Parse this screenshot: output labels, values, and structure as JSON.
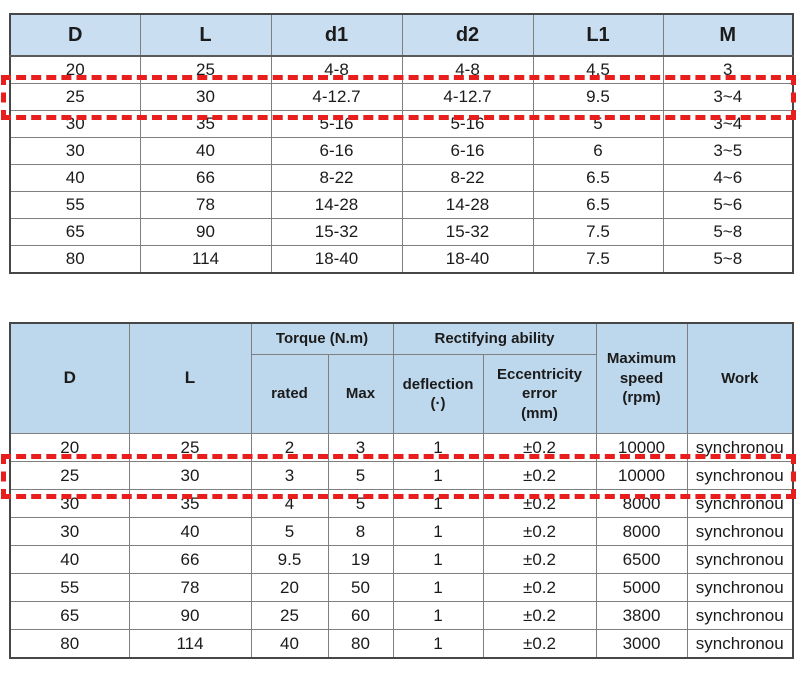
{
  "colors": {
    "table1_header_bg": "#cadef2",
    "table2_header_bg": "#bdd7ec",
    "outer_border": "#474747",
    "inner_border": "#7f7f7f",
    "highlight_red": "#e81e1c",
    "text": "#1b1b1b"
  },
  "table1": {
    "columns": [
      "D",
      "L",
      "d1",
      "d2",
      "L1",
      "M"
    ],
    "rows": [
      [
        "20",
        "25",
        "4-8",
        "4-8",
        "4.5",
        "3"
      ],
      [
        "25",
        "30",
        "4-12.7",
        "4-12.7",
        "9.5",
        "3~4"
      ],
      [
        "30",
        "35",
        "5-16",
        "5-16",
        "5",
        "3~4"
      ],
      [
        "30",
        "40",
        "6-16",
        "6-16",
        "6",
        "3~5"
      ],
      [
        "40",
        "66",
        "8-22",
        "8-22",
        "6.5",
        "4~6"
      ],
      [
        "55",
        "78",
        "14-28",
        "14-28",
        "6.5",
        "5~6"
      ],
      [
        "65",
        "90",
        "15-32",
        "15-32",
        "7.5",
        "5~8"
      ],
      [
        "80",
        "114",
        "18-40",
        "18-40",
        "7.5",
        "5~8"
      ]
    ],
    "highlighted_row_index": 1,
    "highlighted_row_values": [
      "25",
      "30",
      "4-12.7",
      "4-12.7",
      "9.5",
      "3~4"
    ]
  },
  "table2": {
    "header": {
      "d": "D",
      "l": "L",
      "torque_group": "Torque (N.m)",
      "rectifying_group": "Rectifying ability",
      "rated": "rated",
      "max": "Max",
      "deflection": "deflection\n(·)",
      "eccentricity": "Eccentricity\nerror\n(mm)",
      "max_speed": "Maximum\nspeed\n(rpm)",
      "work": "Work"
    },
    "rows": [
      [
        "20",
        "25",
        "2",
        "3",
        "1",
        "±0.2",
        "10000",
        "synchronou"
      ],
      [
        "25",
        "30",
        "3",
        "5",
        "1",
        "±0.2",
        "10000",
        "synchronou"
      ],
      [
        "30",
        "35",
        "4",
        "5",
        "1",
        "±0.2",
        "8000",
        "synchronou"
      ],
      [
        "30",
        "40",
        "5",
        "8",
        "1",
        "±0.2",
        "8000",
        "synchronou"
      ],
      [
        "40",
        "66",
        "9.5",
        "19",
        "1",
        "±0.2",
        "6500",
        "synchronou"
      ],
      [
        "55",
        "78",
        "20",
        "50",
        "1",
        "±0.2",
        "5000",
        "synchronou"
      ],
      [
        "65",
        "90",
        "25",
        "60",
        "1",
        "±0.2",
        "3800",
        "synchronou"
      ],
      [
        "80",
        "114",
        "40",
        "80",
        "1",
        "±0.2",
        "3000",
        "synchronou"
      ]
    ],
    "highlighted_row_index": 1,
    "highlighted_row_values": [
      "25",
      "30",
      "3",
      "5",
      "1",
      "±0.2",
      "10000",
      "synchronou"
    ]
  }
}
